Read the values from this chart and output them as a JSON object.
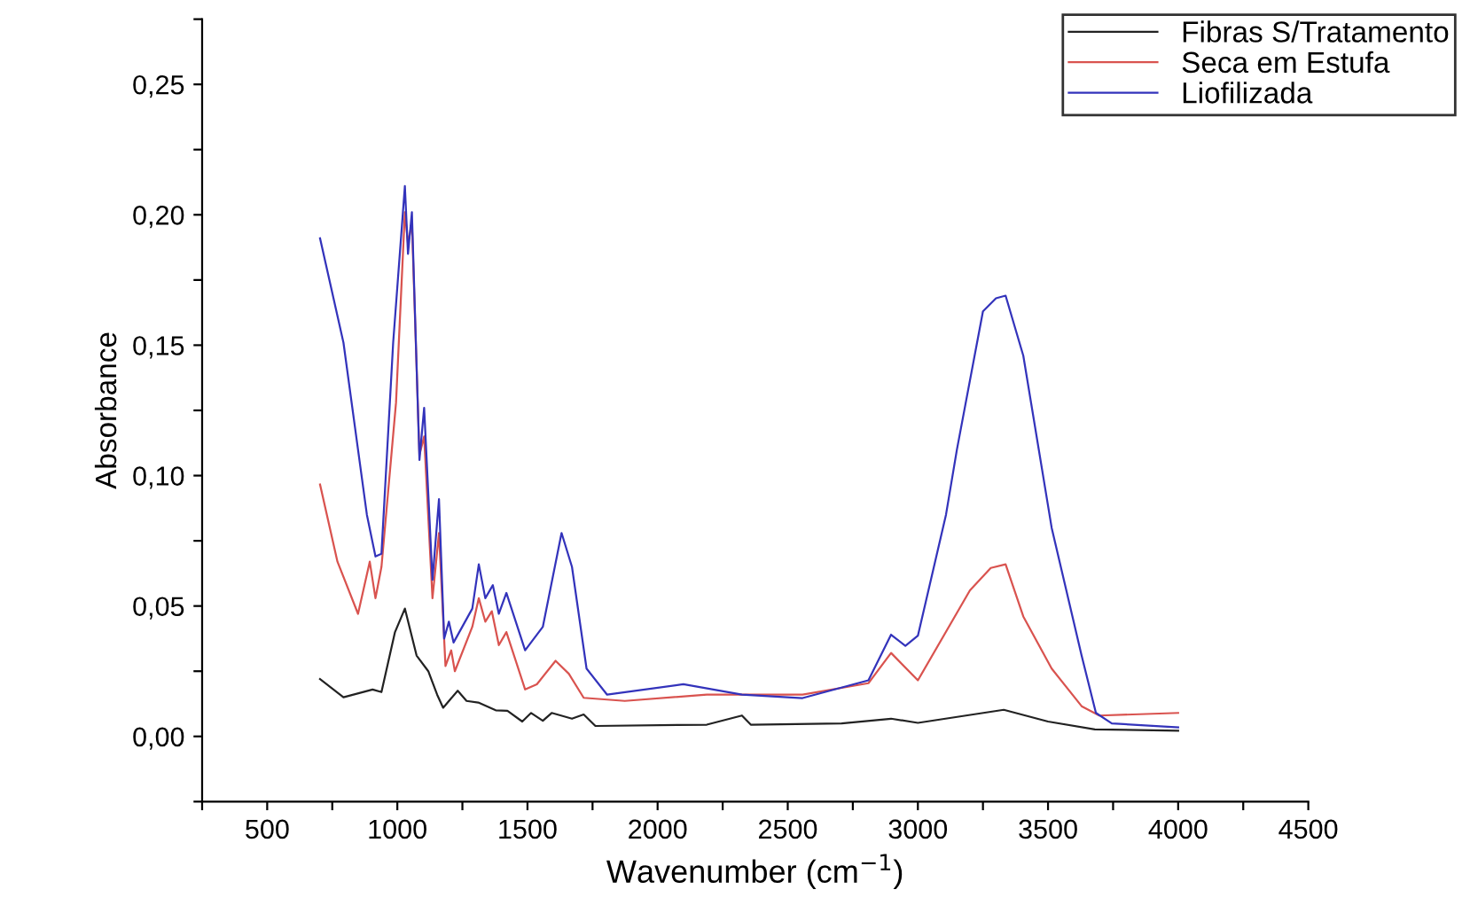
{
  "chart_data": {
    "type": "line",
    "xlabel": "Wavenumber (cm$^{−1}$)",
    "ylabel": "Absorbance",
    "xlim": [
      250,
      4500
    ],
    "ylim": [
      -0.025,
      0.275
    ],
    "xticks": [
      {
        "value": 250,
        "label": null
      },
      500,
      {
        "value": 750,
        "label": null
      },
      1000,
      {
        "value": 1250,
        "label": null
      },
      1500,
      {
        "value": 1750,
        "label": null
      },
      2000,
      {
        "value": 2250,
        "label": null
      },
      2500,
      {
        "value": 2750,
        "label": null
      },
      3000,
      {
        "value": 3250,
        "label": null
      },
      3500,
      {
        "value": 3750,
        "label": null
      },
      4000,
      {
        "value": 4250,
        "label": null
      },
      4500
    ],
    "yticks": [
      {
        "value": -0.025,
        "label": null
      },
      {
        "value": 0,
        "label": "0,00"
      },
      {
        "value": 0.025,
        "label": null
      },
      {
        "value": 0.05,
        "label": "0,05"
      },
      {
        "value": 0.075,
        "label": null
      },
      {
        "value": 0.1,
        "label": "0,10"
      },
      {
        "value": 0.125,
        "label": null
      },
      {
        "value": 0.15,
        "label": "0,15"
      },
      {
        "value": 0.175,
        "label": null
      },
      {
        "value": 0.2,
        "label": "0,20"
      },
      {
        "value": 0.225,
        "label": null
      },
      {
        "value": 0.25,
        "label": "0,25"
      },
      {
        "value": 0.275,
        "label": null
      }
    ],
    "grid": false,
    "legend": "top right",
    "marker": "none",
    "line_style": "solid",
    "series": [
      {
        "name": "Fibras S/Tratamento",
        "color": "#222222",
        "x": [
          703,
          793,
          905,
          939,
          991,
          1029,
          1074,
          1119,
          1153,
          1176,
          1232,
          1266,
          1311,
          1378,
          1423,
          1480,
          1514,
          1559,
          1593,
          1671,
          1716,
          1761,
          2189,
          2324,
          2358,
          2707,
          2897,
          3000,
          3330,
          3500,
          3680,
          4000
        ],
        "values": [
          0.022,
          0.015,
          0.018,
          0.017,
          0.04,
          0.049,
          0.031,
          0.025,
          0.016,
          0.011,
          0.0175,
          0.0136,
          0.013,
          0.01,
          0.0098,
          0.0057,
          0.009,
          0.006,
          0.009,
          0.0068,
          0.0084,
          0.004,
          0.0045,
          0.008,
          0.0045,
          0.005,
          0.0068,
          0.0052,
          0.0102,
          0.0057,
          0.0027,
          0.0022
        ]
      },
      {
        "name": "Seca em Estufa",
        "color": "#d9534f",
        "x": [
          703,
          770,
          849,
          894,
          916,
          939,
          995,
          1029,
          1041,
          1056,
          1085,
          1103,
          1135,
          1160,
          1185,
          1207,
          1221,
          1288,
          1313,
          1338,
          1363,
          1390,
          1419,
          1491,
          1536,
          1608,
          1659,
          1716,
          1874,
          2189,
          2557,
          2810,
          2897,
          3000,
          3200,
          3280,
          3337,
          3405,
          3514,
          3629,
          3697,
          4000
        ],
        "values": [
          0.0966,
          0.067,
          0.047,
          0.067,
          0.053,
          0.065,
          0.128,
          0.201,
          0.189,
          0.197,
          0.108,
          0.115,
          0.053,
          0.078,
          0.027,
          0.033,
          0.025,
          0.042,
          0.053,
          0.044,
          0.048,
          0.035,
          0.04,
          0.018,
          0.02,
          0.029,
          0.024,
          0.0148,
          0.0136,
          0.016,
          0.016,
          0.0204,
          0.032,
          0.0215,
          0.056,
          0.0646,
          0.066,
          0.046,
          0.026,
          0.0116,
          0.008,
          0.009
        ]
      },
      {
        "name": "Liofilizada",
        "color": "#3333bb",
        "x": [
          703,
          793,
          883,
          916,
          939,
          984,
          1029,
          1041,
          1056,
          1085,
          1103,
          1135,
          1160,
          1180,
          1198,
          1216,
          1288,
          1313,
          1338,
          1367,
          1390,
          1419,
          1491,
          1559,
          1631,
          1671,
          1727,
          1806,
          2099,
          2324,
          2557,
          2810,
          2897,
          2952,
          3000,
          3108,
          3150,
          3250,
          3300,
          3337,
          3405,
          3514,
          3629,
          3684,
          3745,
          4000
        ],
        "values": [
          0.191,
          0.151,
          0.085,
          0.069,
          0.07,
          0.151,
          0.211,
          0.185,
          0.201,
          0.106,
          0.126,
          0.06,
          0.091,
          0.0375,
          0.044,
          0.036,
          0.049,
          0.066,
          0.053,
          0.058,
          0.047,
          0.055,
          0.033,
          0.042,
          0.078,
          0.065,
          0.026,
          0.016,
          0.02,
          0.016,
          0.0147,
          0.0215,
          0.039,
          0.0347,
          0.0386,
          0.085,
          0.11,
          0.163,
          0.168,
          0.169,
          0.146,
          0.08,
          0.031,
          0.009,
          0.005,
          0.0035
        ]
      }
    ]
  }
}
